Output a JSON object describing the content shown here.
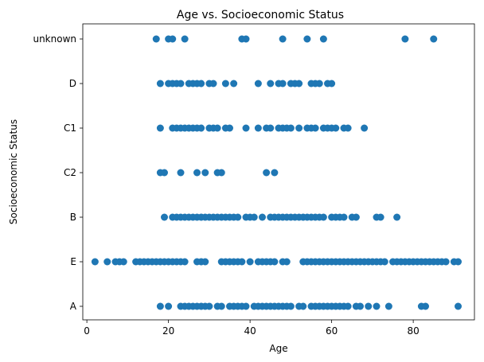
{
  "chart_data": {
    "type": "scatter",
    "title": "Age vs. Socioeconomic Status",
    "xlabel": "Age",
    "ylabel": "Socioeconomic Status",
    "xlim": [
      -1,
      95
    ],
    "x_ticks": [
      0,
      20,
      40,
      60,
      80
    ],
    "categories": [
      "A",
      "E",
      "B",
      "C2",
      "C1",
      "D",
      "unknown"
    ],
    "grid": false,
    "color": "#1f77b4",
    "points": {
      "A": [
        18,
        20,
        23,
        24,
        25,
        26,
        27,
        28,
        29,
        30,
        32,
        33,
        35,
        36,
        37,
        38,
        39,
        41,
        42,
        43,
        44,
        45,
        46,
        47,
        48,
        49,
        50,
        52,
        53,
        55,
        56,
        57,
        58,
        59,
        60,
        61,
        62,
        63,
        64,
        66,
        67,
        69,
        71,
        74,
        82,
        83,
        91
      ],
      "E": [
        2,
        5,
        7,
        8,
        9,
        12,
        13,
        14,
        15,
        16,
        17,
        18,
        19,
        20,
        21,
        22,
        23,
        24,
        27,
        28,
        29,
        33,
        34,
        35,
        36,
        37,
        38,
        40,
        42,
        43,
        44,
        45,
        46,
        48,
        49,
        53,
        54,
        55,
        56,
        57,
        58,
        59,
        60,
        61,
        62,
        63,
        64,
        65,
        66,
        67,
        68,
        69,
        70,
        71,
        72,
        73,
        75,
        76,
        77,
        78,
        79,
        80,
        81,
        82,
        83,
        84,
        85,
        86,
        87,
        88,
        90,
        91
      ],
      "B": [
        19,
        21,
        22,
        23,
        24,
        25,
        26,
        27,
        28,
        29,
        30,
        31,
        32,
        33,
        34,
        35,
        36,
        37,
        39,
        40,
        41,
        43,
        45,
        46,
        47,
        48,
        49,
        50,
        51,
        52,
        53,
        54,
        55,
        56,
        57,
        58,
        60,
        61,
        62,
        63,
        65,
        66,
        71,
        72,
        76
      ],
      "C2": [
        18,
        19,
        23,
        27,
        29,
        32,
        33,
        44,
        46
      ],
      "C1": [
        18,
        21,
        22,
        23,
        24,
        25,
        26,
        27,
        28,
        30,
        31,
        32,
        34,
        35,
        39,
        42,
        44,
        45,
        47,
        48,
        49,
        50,
        52,
        54,
        55,
        56,
        58,
        59,
        60,
        61,
        63,
        64,
        68
      ],
      "D": [
        18,
        20,
        21,
        22,
        23,
        25,
        26,
        27,
        28,
        30,
        31,
        34,
        36,
        42,
        45,
        47,
        48,
        50,
        51,
        52,
        55,
        56,
        57,
        59,
        60
      ],
      "unknown": [
        17,
        20,
        21,
        24,
        38,
        39,
        48,
        54,
        58,
        78,
        85
      ]
    }
  }
}
